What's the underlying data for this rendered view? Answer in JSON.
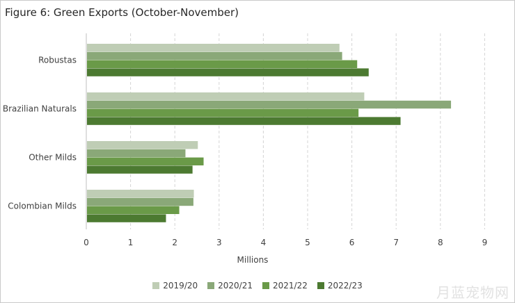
{
  "title": "Figure 6: Green Exports (October-November)",
  "chart_data": {
    "type": "bar",
    "orientation": "horizontal",
    "title": "Figure 6: Green Exports (October-November)",
    "xlabel": "Millions",
    "ylabel": "",
    "xlim": [
      0,
      9
    ],
    "x_ticks": [
      "0",
      "1",
      "2",
      "3",
      "4",
      "5",
      "6",
      "7",
      "8",
      "9"
    ],
    "categories": [
      "Robustas",
      "Brazilian Naturals",
      "Other Milds",
      "Colombian Milds"
    ],
    "series": [
      {
        "name": "2019/20",
        "color": "#bfcdb5",
        "values": [
          5.72,
          6.28,
          2.52,
          2.43
        ]
      },
      {
        "name": "2020/21",
        "color": "#8aa878",
        "values": [
          5.78,
          8.24,
          2.24,
          2.42
        ]
      },
      {
        "name": "2021/22",
        "color": "#6a9a48",
        "values": [
          6.12,
          6.15,
          2.65,
          2.1
        ]
      },
      {
        "name": "2022/23",
        "color": "#4c7a31",
        "values": [
          6.38,
          7.1,
          2.4,
          1.8
        ]
      }
    ],
    "grid": "vertical dashed",
    "legend_position": "bottom"
  },
  "watermark": "月蓝宠物网"
}
